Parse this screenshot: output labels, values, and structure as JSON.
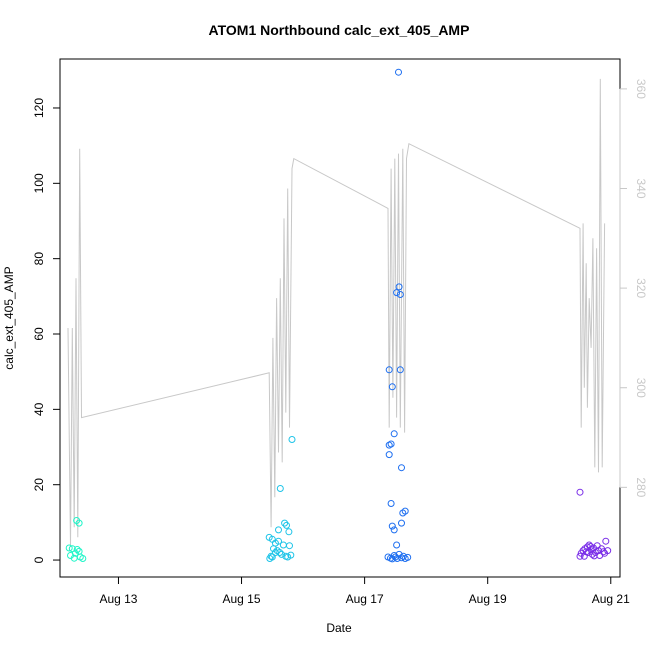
{
  "chart_data": {
    "type": "scatter",
    "title": "ATOM1 Northbound calc_ext_405_AMP",
    "xlabel": "Date",
    "ylabel": "calc_ext_405_AMP",
    "x_range_days": [
      12.05,
      21.15
    ],
    "x_ticks": [
      {
        "label": "Aug 13",
        "day": 13
      },
      {
        "label": "Aug 15",
        "day": 15
      },
      {
        "label": "Aug 17",
        "day": 17
      },
      {
        "label": "Aug 19",
        "day": 19
      },
      {
        "label": "Aug 21",
        "day": 21
      }
    ],
    "ylim": [
      -4.5,
      133
    ],
    "y_ticks": [
      0,
      20,
      40,
      60,
      80,
      100,
      120
    ],
    "y2lim": [
      262,
      366
    ],
    "y2_ticks": [
      280,
      300,
      320,
      340,
      360
    ],
    "grid": false,
    "series": [
      {
        "color": "#1ef5c8",
        "points": [
          [
            12.2,
            3.2
          ],
          [
            12.25,
            3.0
          ],
          [
            12.22,
            1.2
          ],
          [
            12.28,
            0.5
          ],
          [
            12.3,
            1.8
          ],
          [
            12.33,
            2.8
          ],
          [
            12.36,
            2.3
          ],
          [
            12.38,
            0.8
          ],
          [
            12.42,
            0.4
          ],
          [
            12.32,
            10.5
          ],
          [
            12.36,
            9.8
          ]
        ]
      },
      {
        "color": "#1ec4e8",
        "points": [
          [
            15.45,
            6.0
          ],
          [
            15.5,
            5.5
          ],
          [
            15.52,
            3.0
          ],
          [
            15.55,
            4.5
          ],
          [
            15.6,
            5.0
          ],
          [
            15.58,
            2.5
          ],
          [
            15.62,
            2.0
          ],
          [
            15.48,
            1.0
          ],
          [
            15.46,
            0.4
          ],
          [
            15.65,
            1.5
          ],
          [
            15.68,
            4.0
          ],
          [
            15.72,
            1.0
          ],
          [
            15.75,
            0.8
          ],
          [
            15.78,
            3.8
          ],
          [
            15.8,
            1.3
          ],
          [
            15.7,
            9.8
          ],
          [
            15.73,
            9.2
          ],
          [
            15.77,
            7.5
          ],
          [
            15.6,
            8.0
          ],
          [
            15.63,
            19.0
          ],
          [
            15.82,
            32.0
          ],
          [
            15.5,
            0.8
          ],
          [
            15.55,
            2.0
          ]
        ]
      },
      {
        "color": "#1e6ff0",
        "points": [
          [
            17.38,
            0.8
          ],
          [
            17.42,
            0.5
          ],
          [
            17.45,
            0.3
          ],
          [
            17.48,
            1.2
          ],
          [
            17.5,
            0.8
          ],
          [
            17.53,
            0.4
          ],
          [
            17.56,
            1.5
          ],
          [
            17.6,
            0.6
          ],
          [
            17.63,
            1.0
          ],
          [
            17.66,
            0.4
          ],
          [
            17.7,
            0.7
          ],
          [
            17.52,
            4.0
          ],
          [
            17.48,
            8.0
          ],
          [
            17.45,
            9.0
          ],
          [
            17.6,
            9.8
          ],
          [
            17.62,
            12.5
          ],
          [
            17.66,
            13.0
          ],
          [
            17.43,
            15.0
          ],
          [
            17.4,
            28.0
          ],
          [
            17.4,
            30.5
          ],
          [
            17.43,
            30.8
          ],
          [
            17.6,
            24.5
          ],
          [
            17.48,
            33.5
          ],
          [
            17.45,
            46.0
          ],
          [
            17.4,
            50.5
          ],
          [
            17.58,
            50.5
          ],
          [
            17.52,
            71.0
          ],
          [
            17.56,
            72.5
          ],
          [
            17.58,
            70.5
          ],
          [
            17.55,
            129.5
          ]
        ]
      },
      {
        "color": "#7a2ee8",
        "points": [
          [
            20.5,
            1.0
          ],
          [
            20.52,
            1.8
          ],
          [
            20.55,
            2.5
          ],
          [
            20.58,
            3.0
          ],
          [
            20.6,
            2.2
          ],
          [
            20.62,
            3.5
          ],
          [
            20.65,
            4.0
          ],
          [
            20.68,
            2.8
          ],
          [
            20.7,
            1.5
          ],
          [
            20.72,
            3.2
          ],
          [
            20.75,
            2.0
          ],
          [
            20.78,
            3.8
          ],
          [
            20.8,
            2.5
          ],
          [
            20.82,
            1.2
          ],
          [
            20.85,
            3.0
          ],
          [
            20.88,
            2.2
          ],
          [
            20.9,
            1.8
          ],
          [
            20.92,
            5.0
          ],
          [
            20.95,
            2.5
          ],
          [
            20.57,
            1.0
          ],
          [
            20.63,
            2.0
          ],
          [
            20.67,
            3.6
          ],
          [
            20.73,
            1.1
          ],
          [
            20.5,
            18.0
          ]
        ]
      }
    ],
    "line_series": {
      "axis": "right",
      "color": "#c8c8c8",
      "points": [
        [
          12.18,
          312
        ],
        [
          12.22,
          268
        ],
        [
          12.25,
          312
        ],
        [
          12.28,
          272
        ],
        [
          12.31,
          322
        ],
        [
          12.34,
          270
        ],
        [
          12.37,
          348
        ],
        [
          12.4,
          294
        ],
        [
          15.45,
          303
        ],
        [
          15.48,
          272
        ],
        [
          15.51,
          310
        ],
        [
          15.54,
          278
        ],
        [
          15.57,
          318
        ],
        [
          15.6,
          287
        ],
        [
          15.63,
          322
        ],
        [
          15.66,
          285
        ],
        [
          15.69,
          334
        ],
        [
          15.72,
          295
        ],
        [
          15.75,
          340
        ],
        [
          15.78,
          292
        ],
        [
          15.82,
          344
        ],
        [
          15.85,
          346
        ],
        [
          17.38,
          336
        ],
        [
          17.4,
          292
        ],
        [
          17.43,
          344
        ],
        [
          17.46,
          298
        ],
        [
          17.49,
          346
        ],
        [
          17.52,
          294
        ],
        [
          17.55,
          347
        ],
        [
          17.58,
          292
        ],
        [
          17.62,
          348
        ],
        [
          17.65,
          291
        ],
        [
          17.68,
          346
        ],
        [
          17.72,
          349
        ],
        [
          20.5,
          332
        ],
        [
          20.52,
          292
        ],
        [
          20.55,
          333
        ],
        [
          20.57,
          300
        ],
        [
          20.6,
          325
        ],
        [
          20.62,
          296
        ],
        [
          20.65,
          318
        ],
        [
          20.68,
          308
        ],
        [
          20.71,
          330
        ],
        [
          20.74,
          284
        ],
        [
          20.77,
          328
        ],
        [
          20.8,
          283
        ],
        [
          20.83,
          362
        ],
        [
          20.86,
          284
        ],
        [
          20.9,
          333
        ]
      ]
    }
  }
}
